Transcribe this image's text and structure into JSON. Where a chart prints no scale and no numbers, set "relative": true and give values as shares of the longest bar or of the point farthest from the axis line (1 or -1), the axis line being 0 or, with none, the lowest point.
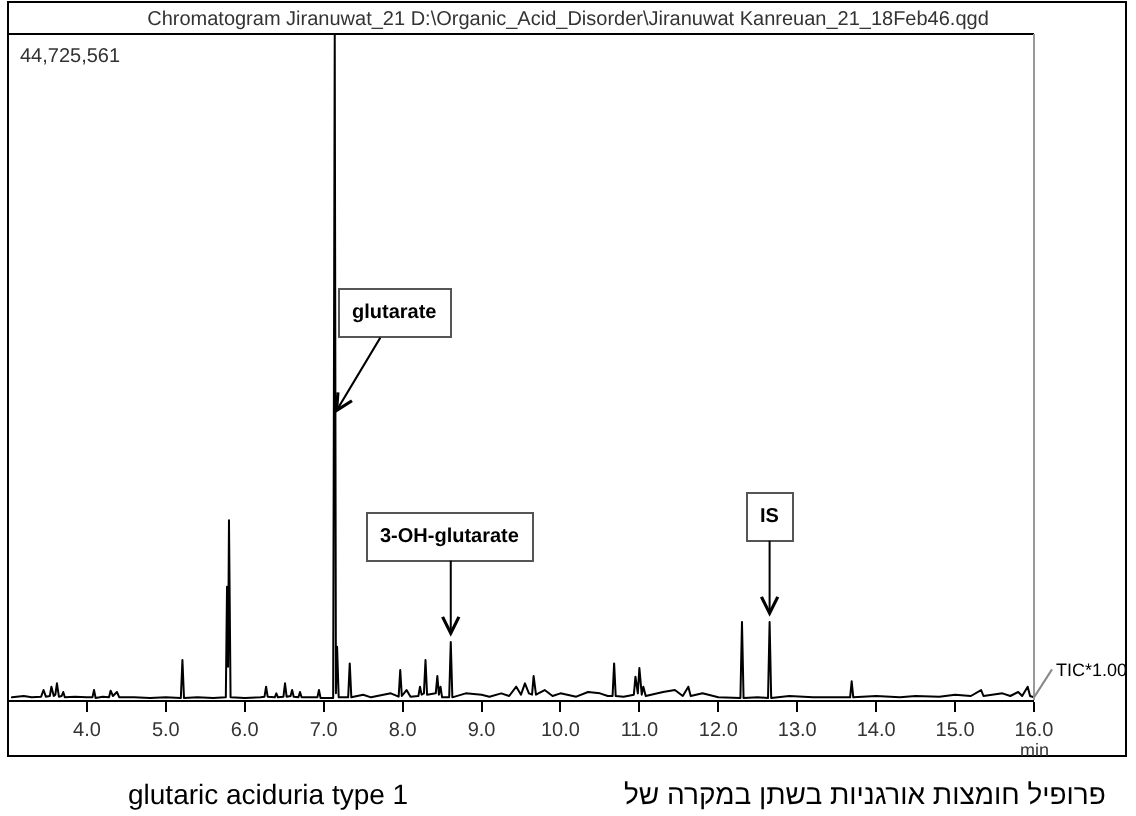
{
  "chart_data": {
    "type": "line",
    "title": "Chromatogram Jiranuwat_21 D:\\Organic_Acid_Disorder\\Jiranuwat Kanreuan_21_18Feb46.qgd",
    "xlabel": "min",
    "relative": true,
    "tick_labels": "x",
    "xlim": [
      3.0,
      16.0
    ],
    "xticks": [
      {
        "value": 4,
        "label": "4.0"
      },
      {
        "value": 5,
        "label": "5.0"
      },
      {
        "value": 6,
        "label": "6.0"
      },
      {
        "value": 7,
        "label": "7.0"
      },
      {
        "value": 8,
        "label": "8.0"
      },
      {
        "value": 9,
        "label": "9.0"
      },
      {
        "value": 10,
        "label": "10.0"
      },
      {
        "value": 11,
        "label": "11.0"
      },
      {
        "value": 12,
        "label": "12.0"
      },
      {
        "value": 13,
        "label": "13.0"
      },
      {
        "value": 14,
        "label": "14.0"
      },
      {
        "value": 15,
        "label": "15.0"
      },
      {
        "value": 16,
        "label": "16.0"
      }
    ],
    "series": [
      {
        "name": "TIC*1.00",
        "color": "#000000",
        "x": [
          3.05,
          3.2,
          3.3,
          3.42,
          3.45,
          3.48,
          3.53,
          3.55,
          3.58,
          3.6,
          3.62,
          3.645,
          3.68,
          3.7,
          3.72,
          3.85,
          4.0,
          4.07,
          4.09,
          4.11,
          4.2,
          4.28,
          4.3,
          4.33,
          4.38,
          4.41,
          4.6,
          4.8,
          5.0,
          5.19,
          5.21,
          5.23,
          5.4,
          5.6,
          5.76,
          5.775,
          5.788,
          5.8,
          5.82,
          6.0,
          6.2,
          6.25,
          6.27,
          6.29,
          6.38,
          6.4,
          6.42,
          6.49,
          6.51,
          6.53,
          6.58,
          6.6,
          6.62,
          6.68,
          6.7,
          6.72,
          6.85,
          6.92,
          6.94,
          6.96,
          7.12,
          7.14,
          7.155,
          7.17,
          7.19,
          7.31,
          7.33,
          7.35,
          7.5,
          7.6,
          7.85,
          7.95,
          7.97,
          7.99,
          8.05,
          8.1,
          8.2,
          8.22,
          8.24,
          8.27,
          8.29,
          8.31,
          8.42,
          8.44,
          8.46,
          8.48,
          8.5,
          8.59,
          8.61,
          8.63,
          8.8,
          9.0,
          9.1,
          9.25,
          9.35,
          9.44,
          9.5,
          9.55,
          9.6,
          9.64,
          9.66,
          9.69,
          9.8,
          9.9,
          10.0,
          10.2,
          10.35,
          10.5,
          10.6,
          10.66,
          10.68,
          10.7,
          10.8,
          10.93,
          10.95,
          10.98,
          11.0,
          11.03,
          11.05,
          11.08,
          11.3,
          11.45,
          11.55,
          11.62,
          11.65,
          11.8,
          12.0,
          12.28,
          12.3,
          12.32,
          12.5,
          12.63,
          12.65,
          12.67,
          12.9,
          13.2,
          13.5,
          13.67,
          13.69,
          13.71,
          14.0,
          14.3,
          14.5,
          14.8,
          15.0,
          15.2,
          15.33,
          15.36,
          15.6,
          15.7,
          15.8,
          15.85,
          15.92,
          15.95,
          16.0
        ],
        "values": [
          0.004,
          0.006,
          0.004,
          0.005,
          0.015,
          0.005,
          0.006,
          0.02,
          0.006,
          0.008,
          0.025,
          0.005,
          0.006,
          0.012,
          0.004,
          0.005,
          0.004,
          0.004,
          0.015,
          0.003,
          0.005,
          0.004,
          0.014,
          0.006,
          0.012,
          0.004,
          0.004,
          0.003,
          0.004,
          0.003,
          0.06,
          0.003,
          0.004,
          0.003,
          0.004,
          0.17,
          0.05,
          0.27,
          0.004,
          0.003,
          0.004,
          0.005,
          0.02,
          0.005,
          0.004,
          0.01,
          0.004,
          0.005,
          0.025,
          0.005,
          0.006,
          0.015,
          0.005,
          0.004,
          0.012,
          0.004,
          0.004,
          0.004,
          0.015,
          0.003,
          0.003,
          1.0,
          0.01,
          0.08,
          0.004,
          0.004,
          0.055,
          0.004,
          0.008,
          0.004,
          0.01,
          0.005,
          0.045,
          0.006,
          0.015,
          0.005,
          0.006,
          0.02,
          0.008,
          0.01,
          0.06,
          0.008,
          0.01,
          0.036,
          0.008,
          0.02,
          0.004,
          0.004,
          0.087,
          0.004,
          0.01,
          0.008,
          0.005,
          0.01,
          0.006,
          0.02,
          0.008,
          0.025,
          0.01,
          0.008,
          0.036,
          0.008,
          0.015,
          0.006,
          0.01,
          0.005,
          0.012,
          0.01,
          0.006,
          0.006,
          0.055,
          0.006,
          0.005,
          0.008,
          0.035,
          0.01,
          0.048,
          0.008,
          0.02,
          0.006,
          0.012,
          0.015,
          0.006,
          0.02,
          0.006,
          0.01,
          0.004,
          0.003,
          0.117,
          0.003,
          0.004,
          0.003,
          0.117,
          0.003,
          0.006,
          0.004,
          0.004,
          0.004,
          0.028,
          0.004,
          0.006,
          0.004,
          0.006,
          0.005,
          0.008,
          0.006,
          0.015,
          0.006,
          0.01,
          0.006,
          0.012,
          0.006,
          0.02,
          0.006,
          0.004
        ]
      }
    ],
    "annotations": [
      "44,725,561",
      {
        "text": "glutarate",
        "x": 7.14,
        "y": 0.43
      },
      {
        "text": "3-OH-glutarate",
        "x": 8.61,
        "y": 0.095
      },
      {
        "text": "IS",
        "x": 12.65,
        "y": 0.125
      },
      "glutaric aciduria type 1",
      "פרופיל חומצות אורגניות בשתן במקרה של"
    ]
  }
}
